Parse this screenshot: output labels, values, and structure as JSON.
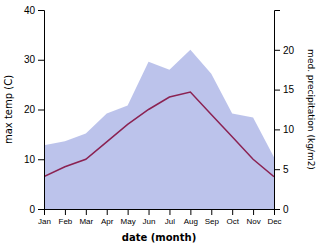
{
  "chart_data": {
    "type": "line",
    "categories": [
      "Jan",
      "Feb",
      "Mar",
      "Apr",
      "May",
      "Jun",
      "Jul",
      "Aug",
      "Sep",
      "Oct",
      "Nov",
      "Dec"
    ],
    "xlabel": "date (month)",
    "ylabel": "max temp (C)",
    "y2label": "med. precipitation (kg/m2)",
    "ylim": [
      0,
      40
    ],
    "yticks": [
      0,
      10,
      20,
      30,
      40
    ],
    "y2lim": [
      0,
      25
    ],
    "y2ticks": [
      0,
      5,
      10,
      15,
      20
    ],
    "series": [
      {
        "type": "area",
        "axis": "y2",
        "color": "#b0b8e8",
        "values": [
          8.0,
          8.5,
          9.5,
          12.0,
          13.0,
          18.5,
          17.5,
          20.0,
          17.0,
          12.0,
          11.5,
          6.5
        ]
      },
      {
        "type": "line",
        "color": "#8b2252",
        "values": [
          6.5,
          8.5,
          10.0,
          13.5,
          17.0,
          20.0,
          22.5,
          23.5,
          19.0,
          14.5,
          10.0,
          6.5
        ]
      }
    ]
  }
}
